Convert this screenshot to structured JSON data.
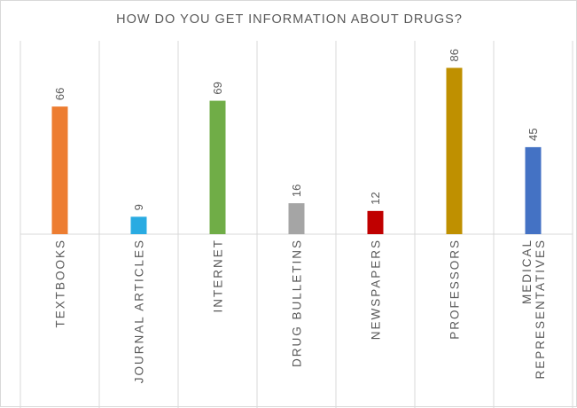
{
  "chart_data": {
    "type": "bar",
    "title": "HOW DO YOU GET INFORMATION ABOUT DRUGS?",
    "categories": [
      [
        "TEXTBOOKS"
      ],
      [
        "JOURNAL ARTICLES"
      ],
      [
        "INTERNET"
      ],
      [
        "DRUG BULLETINS"
      ],
      [
        "NEWSPAPERS"
      ],
      [
        "PROFESSORS"
      ],
      [
        "MEDICAL",
        "REPRESENTATIVES"
      ]
    ],
    "values": [
      66,
      9,
      69,
      16,
      12,
      86,
      45
    ],
    "colors": [
      "#ed7d31",
      "#29abe2",
      "#70ad47",
      "#a5a5a5",
      "#c00000",
      "#bf9000",
      "#4472c4"
    ],
    "ylim": [
      0,
      100
    ],
    "grid": "vertical-category-separators",
    "data_labels": true,
    "legend": "none"
  }
}
